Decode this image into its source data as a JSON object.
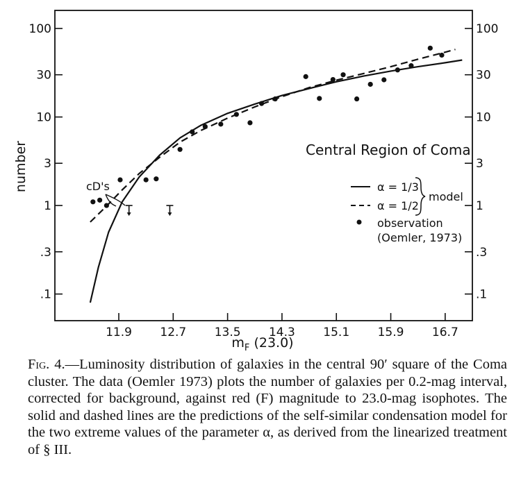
{
  "chart_data": {
    "type": "line",
    "title": "Central Region of Coma",
    "xlabel": "m_F (23.0)",
    "xlabel_main": "m",
    "xlabel_sub": "F",
    "xlabel_rest": " (23.0)",
    "ylabel": "number",
    "y_scale": "log",
    "xlim": [
      10.96,
      17.1
    ],
    "ylim": [
      0.05,
      160
    ],
    "x_ticks": [
      11.9,
      12.7,
      13.5,
      14.3,
      15.1,
      15.9,
      16.7
    ],
    "x_tick_labels": [
      "11.9",
      "12.7",
      "13.5",
      "14.3",
      "15.1",
      "15.9",
      "16.7"
    ],
    "y_ticks": [
      0.1,
      0.3,
      1,
      3,
      10,
      30,
      100
    ],
    "y_tick_labels": [
      ".1",
      ".3",
      "1",
      "3",
      "10",
      "30",
      "100"
    ],
    "grid": false,
    "series": [
      {
        "name": "α = 1/3",
        "style": "solid",
        "points": [
          [
            11.48,
            0.08
          ],
          [
            11.6,
            0.2
          ],
          [
            11.75,
            0.5
          ],
          [
            11.95,
            1.1
          ],
          [
            12.2,
            2.1
          ],
          [
            12.5,
            3.7
          ],
          [
            12.8,
            5.8
          ],
          [
            13.1,
            8.0
          ],
          [
            13.5,
            11.0
          ],
          [
            13.9,
            14.0
          ],
          [
            14.3,
            17.5
          ],
          [
            14.7,
            21.0
          ],
          [
            15.1,
            25.0
          ],
          [
            15.5,
            29.0
          ],
          [
            15.9,
            33.0
          ],
          [
            16.3,
            37.0
          ],
          [
            16.7,
            41.0
          ],
          [
            16.95,
            44.0
          ]
        ]
      },
      {
        "name": "α = 1/2",
        "style": "dashed",
        "points": [
          [
            11.48,
            0.65
          ],
          [
            11.7,
            0.95
          ],
          [
            11.95,
            1.5
          ],
          [
            12.2,
            2.3
          ],
          [
            12.5,
            3.5
          ],
          [
            12.8,
            5.2
          ],
          [
            13.1,
            7.0
          ],
          [
            13.5,
            9.7
          ],
          [
            13.9,
            13.0
          ],
          [
            14.3,
            17.0
          ],
          [
            14.7,
            21.5
          ],
          [
            15.1,
            26.0
          ],
          [
            15.5,
            31.0
          ],
          [
            15.9,
            37.0
          ],
          [
            16.3,
            45.0
          ],
          [
            16.7,
            54.0
          ],
          [
            16.85,
            58.0
          ]
        ]
      },
      {
        "name": "observation (Oemler, 1973)",
        "style": "points",
        "points": [
          [
            11.52,
            1.1
          ],
          [
            11.62,
            1.15
          ],
          [
            11.72,
            1.0
          ],
          [
            11.92,
            1.95
          ],
          [
            12.3,
            1.95
          ],
          [
            12.45,
            2.0
          ],
          [
            12.8,
            4.3
          ],
          [
            12.98,
            6.8
          ],
          [
            13.17,
            7.8
          ],
          [
            13.4,
            8.3
          ],
          [
            13.63,
            10.7
          ],
          [
            13.83,
            8.6
          ],
          [
            14.0,
            14.2
          ],
          [
            14.2,
            16.0
          ],
          [
            14.65,
            28.6
          ],
          [
            14.85,
            16.2
          ],
          [
            15.05,
            26.5
          ],
          [
            15.2,
            30.0
          ],
          [
            15.4,
            16.0
          ],
          [
            15.6,
            23.4
          ],
          [
            15.8,
            26.3
          ],
          [
            16.0,
            34.0
          ],
          [
            16.2,
            38.0
          ],
          [
            16.48,
            60.0
          ],
          [
            16.65,
            50.0
          ]
        ]
      }
    ],
    "upper_limits": [
      [
        12.05,
        1.0
      ],
      [
        12.65,
        1.0
      ]
    ],
    "annotations": [
      "cD's"
    ],
    "legend": {
      "placement": "right",
      "entries": [
        "α = 1/3",
        "α = 1/2"
      ],
      "group_label": "model",
      "observation_lines": [
        "observation",
        "(Oemler, 1973)"
      ]
    }
  },
  "caption": {
    "fig_label": "Fig. 4.",
    "lines": [
      "—Luminosity distribution of galaxies in the central",
      "90′ square of the Coma cluster. The data (Oemler 1973) plots",
      "the number of galaxies per 0.2-mag interval, corrected for",
      "background, against red (F) magnitude to 23.0-mag isophotes.",
      "The solid and dashed lines are the predictions of the self-",
      "similar condensation model for the two extreme values of the",
      "parameter α, as derived from the linearized treatment of § III."
    ]
  }
}
